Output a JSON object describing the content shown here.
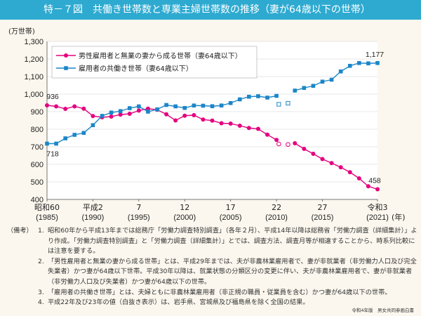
{
  "header": {
    "figure_label": "特－７図",
    "title": "共働き世帯数と専業主婦世帯数の推移（妻が64歳以下の世帯）"
  },
  "chart_data": {
    "type": "line",
    "title": "共働き世帯数と専業主婦世帯数の推移（妻が64歳以下の世帯）",
    "ylabel": "(万世帯)",
    "xlabel": "(年)",
    "ylim": [
      400,
      1300
    ],
    "yticks": [
      400,
      500,
      600,
      700,
      800,
      900,
      1000,
      1100,
      1200,
      1300
    ],
    "ytick_labels": [
      "400",
      "500",
      "600",
      "700",
      "800",
      "900",
      "1,000",
      "1,100",
      "1,200",
      "1,300"
    ],
    "xlim": [
      1985,
      2021
    ],
    "x_ticks": [
      {
        "x": 1985,
        "line1": "昭和60",
        "line2": "(1985)"
      },
      {
        "x": 1990,
        "line1": "平成2",
        "line2": "(1990)"
      },
      {
        "x": 1995,
        "line1": "7",
        "line2": "(1995)"
      },
      {
        "x": 2000,
        "line1": "12",
        "line2": "(2000)"
      },
      {
        "x": 2005,
        "line1": "17",
        "line2": "(2005)"
      },
      {
        "x": 2010,
        "line1": "22",
        "line2": "(2010)"
      },
      {
        "x": 2015,
        "line1": "27",
        "line2": "(2015)"
      },
      {
        "x": 2021,
        "line1": "令和3",
        "line2": "(2021)"
      }
    ],
    "grid": true,
    "legend_position": "top-left",
    "series": [
      {
        "name": "男性雇用者と無業の妻から成る世帯（妻64歳以下）",
        "color": "#e4007f",
        "marker": "circle",
        "segments": [
          {
            "x": [
              1985,
              1986,
              1987,
              1988,
              1989,
              1990,
              1991,
              1992,
              1993,
              1994,
              1995,
              1996,
              1997,
              1998,
              1999,
              2000,
              2001,
              2002,
              2003,
              2004,
              2005,
              2006,
              2007,
              2008,
              2009,
              2010
            ],
            "y": [
              936,
              930,
              916,
              930,
              917,
              875,
              868,
              872,
              883,
              888,
              906,
              917,
              911,
              885,
              850,
              877,
              880,
              855,
              849,
              834,
              832,
              820,
              807,
              802,
              769,
              739
            ]
          },
          {
            "x": [
              2012,
              2013,
              2014,
              2015,
              2016,
              2017,
              2018,
              2019,
              2020,
              2021
            ],
            "y": [
              720,
              688,
              660,
              630,
              607,
              583,
              555,
              520,
              475,
              458
            ]
          }
        ],
        "gap_points": {
          "x": [
            2010,
            2011
          ],
          "y": [
            716,
            713
          ]
        },
        "labels": [
          {
            "x": 1985,
            "y": 936,
            "text": "936",
            "pos": "above"
          },
          {
            "x": 2021,
            "y": 458,
            "text": "458",
            "pos": "above"
          }
        ]
      },
      {
        "name": "雇用者の共働き世帯（妻64歳以下）",
        "color": "#1b86c8",
        "marker": "square",
        "segments": [
          {
            "x": [
              1985,
              1986,
              1987,
              1988,
              1989,
              1990,
              1991,
              1992,
              1993,
              1994,
              1995,
              1996,
              1997,
              1998,
              1999,
              2000,
              2001,
              2002,
              2003,
              2004,
              2005,
              2006,
              2007,
              2008,
              2009,
              2010
            ],
            "y": [
              718,
              718,
              748,
              768,
              779,
              823,
              876,
              895,
              903,
              920,
              930,
              900,
              913,
              938,
              930,
              921,
              935,
              934,
              931,
              935,
              949,
              970,
              985,
              988,
              980,
              990
            ]
          },
          {
            "x": [
              2012,
              2013,
              2014,
              2015,
              2016,
              2017,
              2018,
              2019,
              2020,
              2021
            ],
            "y": [
              1020,
              1035,
              1047,
              1071,
              1082,
              1129,
              1161,
              1177,
              1175,
              1177
            ]
          }
        ],
        "gap_points": {
          "x": [
            2010,
            2011
          ],
          "y": [
            942,
            948
          ]
        },
        "labels": [
          {
            "x": 1985,
            "y": 718,
            "text": "718",
            "pos": "below"
          },
          {
            "x": 2021,
            "y": 1177,
            "text": "1,177",
            "pos": "above"
          }
        ]
      }
    ]
  },
  "notes": {
    "heading": "（備考）",
    "items": [
      {
        "num": "1.",
        "text": "昭和60年から平成13年までは総務庁「労働力調査特別調査」（各年２月）、平成14年以降は総務省「労働力調査（詳細集計）」より作成。「労働力調査特別調査」と「労働力調査（詳細集計）」とでは、調査方法、調査月等が相違することから、時系列比較には注意を要する。"
      },
      {
        "num": "2.",
        "text": "「男性雇用者と無業の妻から成る世帯」とは、平成29年までは、夫が非農林業雇用者で、妻が非就業者（非労働力人口及び完全失業者）かつ妻が64歳以下世帯。平成30年以降は、就業状態の分類区分の変更に伴い、夫が非農林業雇用者で、妻が非就業者（非労働力人口及び失業者）かつ妻が64歳以下の世帯。"
      },
      {
        "num": "3.",
        "text": "「雇用者の共働き世帯」とは、夫婦ともに非農林業雇用者（非正規の職員・従業員を含む）かつ妻が64歳以下の世帯。"
      },
      {
        "num": "4.",
        "text": "平成22年及び23年の値（白抜き表示）は、岩手県、宮城県及び福島県を除く全国の結果。"
      }
    ],
    "source": "令和4年版　男女共同参画白書"
  }
}
